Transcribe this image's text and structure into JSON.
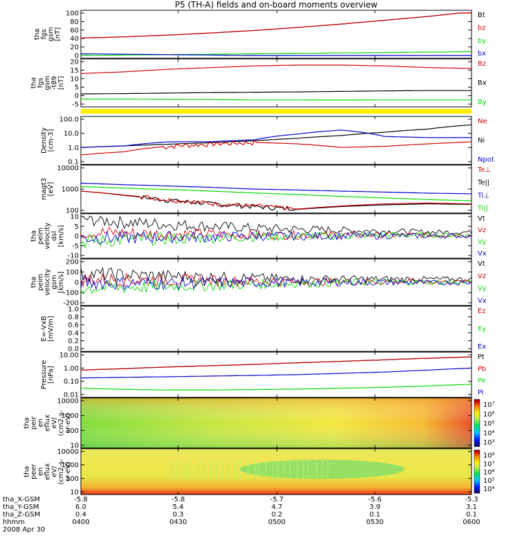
{
  "chart_data": {
    "type": "line",
    "title": "P5 (TH-A) fields and on-board moments overview",
    "colors": {
      "black": "#000000",
      "red": "#d40000",
      "green": "#00dc00",
      "blue": "#0000d0",
      "yellow": "#ffee00"
    },
    "panels": [
      {
        "id": "fgs",
        "ylabel": [
          "tha",
          "fgs",
          "gsm",
          "[nT]"
        ],
        "yticks": [
          "100",
          "80",
          "60",
          "40",
          "20",
          "0"
        ],
        "legend": [
          {
            "label": "Bt",
            "color": "#000000"
          },
          {
            "label": "bz",
            "color": "#d40000"
          },
          {
            "label": "by",
            "color": "#00dc00"
          },
          {
            "label": "bx",
            "color": "#0000d0"
          }
        ],
        "series": [
          {
            "name": "Bt",
            "color": "#000000",
            "y": [
              41,
              44,
              48,
              53,
              59,
              66,
              74,
              83,
              92,
              103
            ]
          },
          {
            "name": "bz",
            "color": "#d40000",
            "y": [
              41,
              44,
              48,
              53,
              59,
              66,
              74,
              83,
              92,
              103
            ]
          },
          {
            "name": "by",
            "color": "#00dc00",
            "y": [
              0,
              1,
              2,
              3,
              4,
              5,
              6,
              7,
              8,
              9
            ]
          },
          {
            "name": "bx",
            "color": "#0000d0",
            "y": [
              4,
              3,
              2,
              1,
              0,
              -1,
              -2,
              -3,
              -3,
              -4
            ]
          }
        ]
      },
      {
        "id": "fgs_t89",
        "ylabel": [
          "tha",
          "fgs",
          "gsm",
          "-t89",
          "[nT]"
        ],
        "yticks": [
          "20",
          "15",
          "10",
          "5",
          "0",
          "-5"
        ],
        "legend": [
          {
            "label": "Bz",
            "color": "#d40000"
          },
          {
            "label": "Bx",
            "color": "#000000"
          },
          {
            "label": "By",
            "color": "#00dc00"
          }
        ],
        "series": [
          {
            "name": "Bz",
            "color": "#d40000",
            "y": [
              13,
              14,
              15.5,
              16.5,
              17.5,
              18,
              18,
              17.5,
              16.5,
              16
            ]
          },
          {
            "name": "Bx",
            "color": "#000000",
            "y": [
              1,
              1.2,
              1.5,
              1.8,
              2,
              2.2,
              2.5,
              2.8,
              3,
              3
            ]
          },
          {
            "name": "By",
            "color": "#00dc00",
            "y": [
              -2,
              -2,
              -2.2,
              -2.3,
              -2.5,
              -2.5,
              -2.6,
              -2.5,
              -2.5,
              -2.5
            ]
          }
        ]
      },
      {
        "id": "density",
        "ylabel": [
          "Density",
          "[cm-3]"
        ],
        "yticks": [
          "100.0",
          "10.0",
          "1.0",
          "0.1"
        ],
        "legend": [
          {
            "label": "Ne",
            "color": "#d40000"
          },
          {
            "label": "Ni",
            "color": "#000000"
          },
          {
            "label": "Npot",
            "color": "#0000d0"
          }
        ],
        "series": [
          {
            "name": "Ni",
            "color": "#000000",
            "y": [
              1.0,
              1.3,
              1.7,
              2.2,
              3.0,
              4.5,
              7,
              12,
              20,
              40
            ]
          },
          {
            "name": "Ne",
            "color": "#d40000",
            "y": [
              0.3,
              0.5,
              1.2,
              1.8,
              2.3,
              1.8,
              1.0,
              1.2,
              1.8,
              2.5
            ]
          },
          {
            "name": "Npot",
            "color": "#0000d0",
            "y": [
              1.0,
              1.3,
              2.5,
              2.6,
              3.5,
              9,
              17,
              6,
              5,
              5
            ]
          }
        ]
      },
      {
        "id": "temp",
        "ylabel": [
          "magt3",
          "[eV]"
        ],
        "yticks": [
          "10000",
          "1000",
          "100"
        ],
        "legend": [
          {
            "label": "Te⊥",
            "color": "#d40000"
          },
          {
            "label": "Te||",
            "color": "#000000"
          },
          {
            "label": "Ti⊥",
            "color": "#0000d0"
          },
          {
            "label": "Ti||",
            "color": "#00dc00"
          }
        ],
        "series": [
          {
            "name": "Ti⊥",
            "color": "#0000d0",
            "y": [
              1900,
              1600,
              1400,
              1200,
              1000,
              900,
              800,
              720,
              640,
              600
            ]
          },
          {
            "name": "Ti||",
            "color": "#00dc00",
            "y": [
              1300,
              1100,
              950,
              800,
              650,
              550,
              450,
              380,
              320,
              280
            ]
          },
          {
            "name": "Te||",
            "color": "#000000",
            "y": [
              800,
              500,
              300,
              200,
              150,
              110,
              150,
              180,
              200,
              190
            ]
          },
          {
            "name": "Te⊥",
            "color": "#d40000",
            "y": [
              800,
              520,
              320,
              210,
              160,
              115,
              160,
              200,
              220,
              200
            ]
          }
        ]
      },
      {
        "id": "vel_dsl",
        "ylabel": [
          "tha",
          "peim",
          "velocity",
          "dsl",
          "[km/s]"
        ],
        "yticks": [
          "10",
          "5",
          "0",
          "-5",
          "-10"
        ],
        "legend": [
          {
            "label": "Vt",
            "color": "#000000"
          },
          {
            "label": "Vz",
            "color": "#d40000"
          },
          {
            "label": "Vy",
            "color": "#00dc00"
          },
          {
            "label": "Vx",
            "color": "#0000d0"
          }
        ],
        "series": [
          {
            "name": "Vt",
            "color": "#000000",
            "y": [
              9,
              7,
              6,
              5,
              4,
              3.5,
              3,
              2.5,
              2,
              2
            ]
          },
          {
            "name": "Vz",
            "color": "#d40000",
            "y": [
              2,
              1.5,
              1,
              1,
              0.5,
              0.5,
              0.5,
              0.5,
              0.5,
              0.5
            ]
          },
          {
            "name": "Vy",
            "color": "#00dc00",
            "y": [
              -3,
              -2,
              -1.5,
              -1,
              -0.5,
              0,
              0,
              0.5,
              0.5,
              0.5
            ]
          },
          {
            "name": "Vx",
            "color": "#0000d0",
            "y": [
              -1,
              -1,
              -0.5,
              -0.5,
              0,
              0,
              0,
              0,
              0,
              0
            ]
          }
        ]
      },
      {
        "id": "vel_gsm",
        "ylabel": [
          "tha",
          "peim",
          "velocity",
          "gsm",
          "[km/s]"
        ],
        "yticks": [
          "200",
          "100",
          "0",
          "-100",
          "-200"
        ],
        "legend": [
          {
            "label": "Vt",
            "color": "#000000"
          },
          {
            "label": "Vz",
            "color": "#d40000"
          },
          {
            "label": "Vy",
            "color": "#00dc00"
          },
          {
            "label": "Vx",
            "color": "#0000d0"
          }
        ],
        "series": [
          {
            "name": "Vt",
            "color": "#000000",
            "y": [
              80,
              70,
              60,
              50,
              40,
              30,
              30,
              30,
              30,
              30
            ]
          },
          {
            "name": "Vz",
            "color": "#d40000",
            "y": [
              30,
              25,
              20,
              15,
              10,
              5,
              5,
              5,
              5,
              5
            ]
          },
          {
            "name": "Vy",
            "color": "#00dc00",
            "y": [
              -60,
              -50,
              -40,
              -30,
              -20,
              -10,
              -5,
              0,
              0,
              0
            ]
          },
          {
            "name": "Vx",
            "color": "#0000d0",
            "y": [
              0,
              -10,
              -10,
              -5,
              -5,
              0,
              0,
              0,
              -5,
              -5
            ]
          }
        ]
      },
      {
        "id": "efield",
        "ylabel": [
          "E=-VxB",
          "[mV/m]"
        ],
        "yticks": [
          "1.0",
          "0.8",
          "0.6",
          "0.4",
          "0.2",
          "0.0"
        ],
        "legend": [
          {
            "label": "Ez",
            "color": "#d40000"
          },
          {
            "label": "Ey",
            "color": "#00dc00"
          },
          {
            "label": "Ex",
            "color": "#0000d0"
          }
        ],
        "series": []
      },
      {
        "id": "pressure",
        "ylabel": [
          "Pressure",
          "[nPa]"
        ],
        "yticks": [
          "10.00",
          "1.00",
          "0.10",
          "0.01"
        ],
        "legend": [
          {
            "label": "Pt",
            "color": "#000000"
          },
          {
            "label": "Pb",
            "color": "#d40000"
          },
          {
            "label": "Pe",
            "color": "#00dc00"
          },
          {
            "label": "Pi",
            "color": "#0000d0"
          }
        ],
        "series": [
          {
            "name": "Pt",
            "color": "#000000",
            "y": [
              0.7,
              0.9,
              1.2,
              1.5,
              1.9,
              2.5,
              3.2,
              4.2,
              5.5,
              7
            ]
          },
          {
            "name": "Pb",
            "color": "#d40000",
            "y": [
              0.7,
              0.9,
              1.2,
              1.5,
              1.9,
              2.5,
              3.2,
              4.2,
              5.5,
              7
            ]
          },
          {
            "name": "Pi",
            "color": "#0000d0",
            "y": [
              0.18,
              0.2,
              0.22,
              0.25,
              0.28,
              0.32,
              0.4,
              0.5,
              0.7,
              1.0
            ]
          },
          {
            "name": "Pe",
            "color": "#00dc00",
            "y": [
              0.03,
              0.025,
              0.022,
              0.022,
              0.024,
              0.026,
              0.03,
              0.035,
              0.045,
              0.06
            ]
          }
        ]
      },
      {
        "id": "peir_spec",
        "spectrogram": true,
        "ylabel": [
          "tha",
          "peir",
          "en",
          "eflux",
          "eV/",
          "(cm2-s-",
          "sr-eV)"
        ],
        "yticks": [
          "10000",
          "1000",
          "100",
          "10"
        ],
        "colorbar": [
          "10⁷",
          "10⁶",
          "10⁵",
          "10⁴",
          "10³"
        ]
      },
      {
        "id": "peer_spec",
        "spectrogram": true,
        "ylabel": [
          "tha",
          "peer",
          "en",
          "eflux",
          "eV/",
          "(cm2-s-",
          "sr-eV)"
        ],
        "yticks": [
          "10000",
          "1000",
          "100",
          "10"
        ],
        "colorbar": [
          "10⁸",
          "10⁷",
          "10⁶",
          "10⁵",
          "10⁴"
        ]
      }
    ],
    "x": {
      "rows": [
        {
          "label": "tha_X-GSM",
          "values": [
            "-5.8",
            "-5.8",
            "-5.7",
            "-5.6",
            "-5.3"
          ]
        },
        {
          "label": "tha_Y-GSM",
          "values": [
            "6.0",
            "5.4",
            "4.7",
            "3.9",
            "3.1"
          ]
        },
        {
          "label": "tha_Z-GSM",
          "values": [
            "0.4",
            "0.3",
            "0.2",
            "0.1",
            "0.1"
          ]
        },
        {
          "label": "hhmm",
          "values": [
            "0400",
            "0430",
            "0500",
            "0530",
            "0600"
          ]
        }
      ],
      "date": "2008 Apr 30"
    }
  }
}
